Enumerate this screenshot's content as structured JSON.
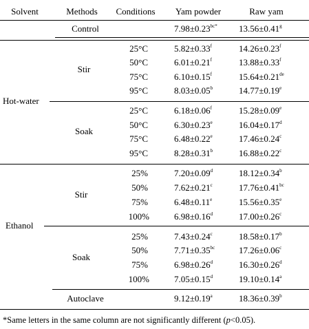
{
  "headers": [
    "Solvent",
    "Methods",
    "Conditions",
    "Yam powder",
    "Raw yam"
  ],
  "control": {
    "label": "Control",
    "powder": {
      "v": "7.98±0.23",
      "s": "bc*"
    },
    "raw": {
      "v": "13.56±0.41",
      "s": "g"
    }
  },
  "hot_water": {
    "solvent": "Hot-water",
    "stir": {
      "method": "Stir",
      "rows": [
        {
          "cond": "25°C",
          "powder": {
            "v": "5.82±0.33",
            "s": "f"
          },
          "raw": {
            "v": "14.26±0.23",
            "s": "f"
          }
        },
        {
          "cond": "50°C",
          "powder": {
            "v": "6.01±0.21",
            "s": "f"
          },
          "raw": {
            "v": "13.88±0.33",
            "s": "f"
          }
        },
        {
          "cond": "75°C",
          "powder": {
            "v": "6.10±0.15",
            "s": "f"
          },
          "raw": {
            "v": "15.64±0.21",
            "s": "de"
          }
        },
        {
          "cond": "95°C",
          "powder": {
            "v": "8.03±0.05",
            "s": "b"
          },
          "raw": {
            "v": "14.77±0.19",
            "s": "e"
          }
        }
      ]
    },
    "soak": {
      "method": "Soak",
      "rows": [
        {
          "cond": "25°C",
          "powder": {
            "v": "6.18±0.06",
            "s": "f"
          },
          "raw": {
            "v": "15.28±0.09",
            "s": "e"
          }
        },
        {
          "cond": "50°C",
          "powder": {
            "v": "6.30±0.23",
            "s": "e"
          },
          "raw": {
            "v": "16.04±0.17",
            "s": "d"
          }
        },
        {
          "cond": "75°C",
          "powder": {
            "v": "6.48±0.22",
            "s": "e"
          },
          "raw": {
            "v": "17.46±0.24",
            "s": "c"
          }
        },
        {
          "cond": "95°C",
          "powder": {
            "v": "8.28±0.31",
            "s": "b"
          },
          "raw": {
            "v": "16.88±0.22",
            "s": "c"
          }
        }
      ]
    }
  },
  "ethanol": {
    "solvent": "Ethanol",
    "stir": {
      "method": "Stir",
      "rows": [
        {
          "cond": "25%",
          "powder": {
            "v": "7.20±0.09",
            "s": "d"
          },
          "raw": {
            "v": "18.12±0.34",
            "s": "b"
          }
        },
        {
          "cond": "50%",
          "powder": {
            "v": "7.62±0.21",
            "s": "c"
          },
          "raw": {
            "v": "17.76±0.41",
            "s": "bc"
          }
        },
        {
          "cond": "75%",
          "powder": {
            "v": "6.48±0.11",
            "s": "e"
          },
          "raw": {
            "v": "15.56±0.35",
            "s": "e"
          }
        },
        {
          "cond": "100%",
          "powder": {
            "v": "6.98±0.16",
            "s": "d"
          },
          "raw": {
            "v": "17.00±0.26",
            "s": "c"
          }
        }
      ]
    },
    "soak": {
      "method": "Soak",
      "rows": [
        {
          "cond": "25%",
          "powder": {
            "v": "7.43±0.24",
            "s": "c"
          },
          "raw": {
            "v": "18.58±0.17",
            "s": "b"
          }
        },
        {
          "cond": "50%",
          "powder": {
            "v": "7.71±0.35",
            "s": "bc"
          },
          "raw": {
            "v": "17.26±0.06",
            "s": "c"
          }
        },
        {
          "cond": "75%",
          "powder": {
            "v": "6.98±0.26",
            "s": "d"
          },
          "raw": {
            "v": "16.30±0.26",
            "s": "d"
          }
        },
        {
          "cond": "100%",
          "powder": {
            "v": "7.05±0.15",
            "s": "d"
          },
          "raw": {
            "v": "19.10±0.14",
            "s": "a"
          }
        }
      ]
    }
  },
  "autoclave": {
    "label": "Autoclave",
    "powder": {
      "v": "9.12±0.19",
      "s": "a"
    },
    "raw": {
      "v": "18.36±0.39",
      "s": "b"
    }
  },
  "footnote": {
    "prefix": "*Same letters in the same column are not significantly different (",
    "italic": "p",
    "suffix": "<0.05)."
  }
}
